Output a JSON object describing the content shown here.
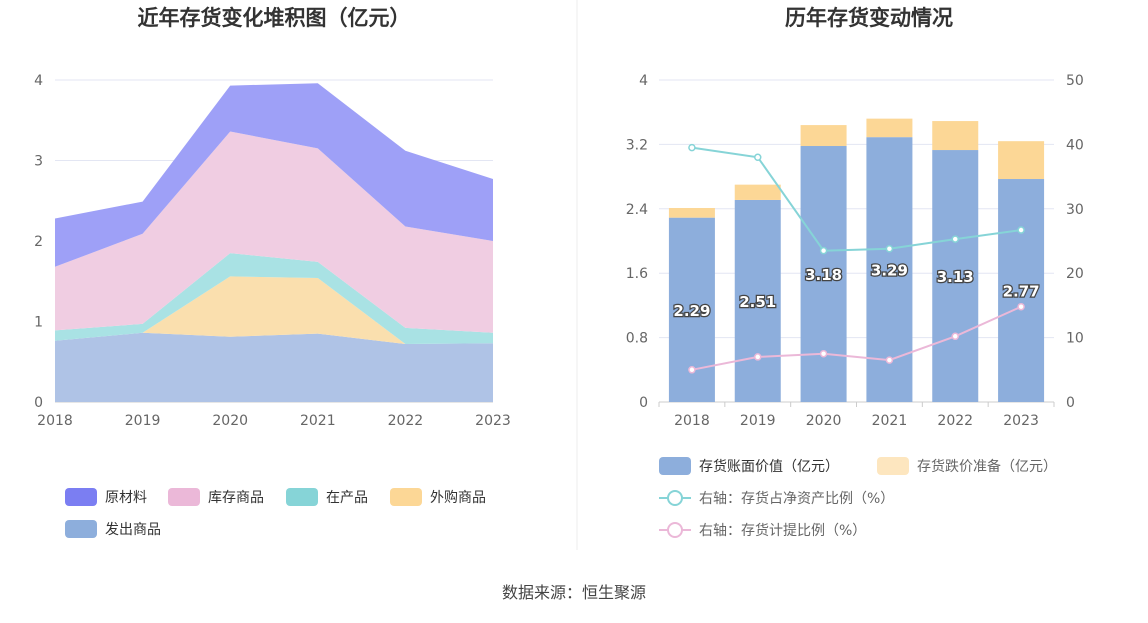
{
  "source": "数据来源：恒生聚源",
  "chart_data": [
    {
      "type": "area",
      "stacked": true,
      "title": "近年存货变化堆积图（亿元）",
      "x": [
        "2018",
        "2019",
        "2020",
        "2021",
        "2022",
        "2023"
      ],
      "ylim": [
        0,
        4
      ],
      "yticks": [
        "0",
        "1",
        "2",
        "3",
        "4"
      ],
      "grid": true,
      "legend_position": "bottom",
      "series": [
        {
          "name": "发出商品",
          "color": "#afc3e6",
          "legend_color": "#8daedc",
          "values": [
            0.76,
            0.86,
            0.81,
            0.85,
            0.72,
            0.73
          ]
        },
        {
          "name": "外购商品",
          "color": "#fadfae",
          "legend_color": "#fcd796",
          "values": [
            0.0,
            0.0,
            0.75,
            0.69,
            0.0,
            0.0
          ]
        },
        {
          "name": "在产品",
          "color": "#a9e2e4",
          "legend_color": "#86d4d7",
          "values": [
            0.13,
            0.11,
            0.29,
            0.2,
            0.2,
            0.13
          ]
        },
        {
          "name": "库存商品",
          "color": "#f0cde2",
          "legend_color": "#ebb8d8",
          "values": [
            0.79,
            1.12,
            1.51,
            1.41,
            1.26,
            1.14
          ]
        },
        {
          "name": "原材料",
          "color": "#9ea0f7",
          "legend_color": "#7b7ef2",
          "values": [
            0.6,
            0.4,
            0.57,
            0.81,
            0.94,
            0.77
          ]
        }
      ],
      "legend_order": [
        "原材料",
        "库存商品",
        "在产品",
        "外购商品",
        "发出商品"
      ]
    },
    {
      "type": "bar",
      "stacked": true,
      "title": "历年存货变动情况",
      "categories": [
        "2018",
        "2019",
        "2020",
        "2021",
        "2022",
        "2023"
      ],
      "ylim": [
        0,
        4
      ],
      "yticks": [
        "0",
        "0.8",
        "1.6",
        "2.4",
        "3.2",
        "4"
      ],
      "y2lim": [
        0,
        50
      ],
      "y2ticks": [
        "0",
        "10",
        "20",
        "30",
        "40",
        "50"
      ],
      "grid": true,
      "legend_position": "bottom",
      "series": [
        {
          "name": "存货账面价值（亿元）",
          "kind": "bar",
          "color": "#8daedc",
          "values": [
            2.29,
            2.51,
            3.18,
            3.29,
            3.13,
            2.77
          ],
          "labels": [
            "2.29",
            "2.51",
            "3.18",
            "3.29",
            "3.13",
            "2.77"
          ]
        },
        {
          "name": "存货跌价准备（亿元）",
          "kind": "bar",
          "color": "#fcd796",
          "legend_color": "#fde6bf",
          "values": [
            0.12,
            0.19,
            0.26,
            0.23,
            0.36,
            0.47
          ]
        },
        {
          "name": "右轴：存货占净资产比例（%）",
          "kind": "line",
          "axis": "right",
          "color": "#86d4d7",
          "values": [
            39.5,
            38.0,
            23.5,
            23.8,
            25.3,
            26.7
          ]
        },
        {
          "name": "右轴：存货计提比例（%）",
          "kind": "line",
          "axis": "right",
          "color": "#ebb8d8",
          "values": [
            5.0,
            7.0,
            7.5,
            6.5,
            10.2,
            14.8
          ]
        }
      ]
    }
  ]
}
